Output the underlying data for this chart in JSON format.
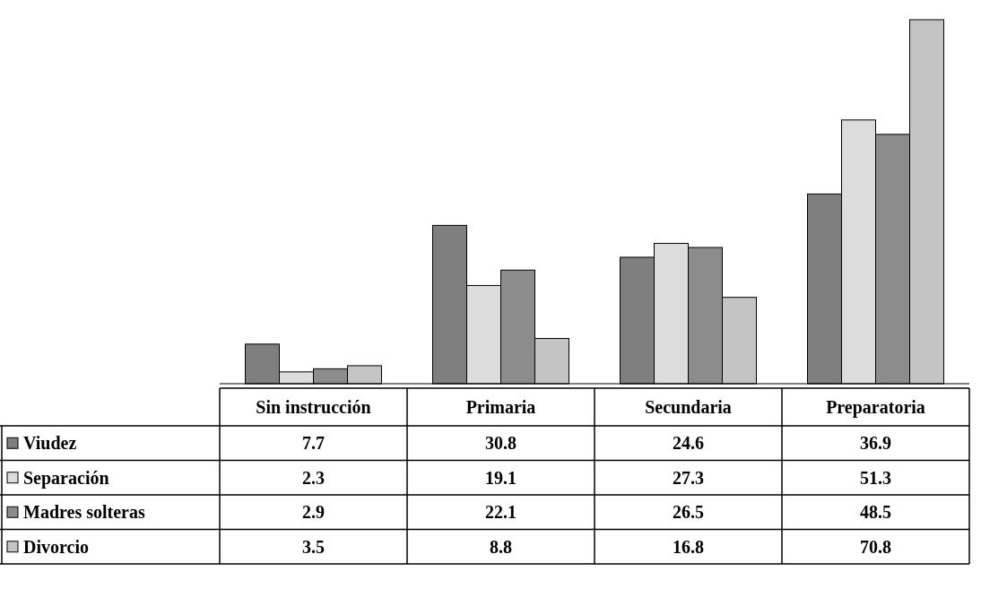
{
  "chart_data": {
    "type": "bar",
    "categories": [
      "Sin instrucción",
      "Primaria",
      "Secundaria",
      "Preparatoria"
    ],
    "series": [
      {
        "name": "Viudez",
        "color": "#7f7f7f",
        "values": [
          7.7,
          30.8,
          24.6,
          36.9
        ]
      },
      {
        "name": "Separación",
        "color": "#dcdcdc",
        "values": [
          2.3,
          19.1,
          27.3,
          51.3
        ]
      },
      {
        "name": "Madres solteras",
        "color": "#8c8c8c",
        "values": [
          2.9,
          22.1,
          26.5,
          48.5
        ]
      },
      {
        "name": "Divorcio",
        "color": "#c4c4c4",
        "values": [
          3.5,
          8.8,
          16.8,
          70.8
        ]
      }
    ],
    "data_labels": true,
    "legend": "bottom"
  }
}
